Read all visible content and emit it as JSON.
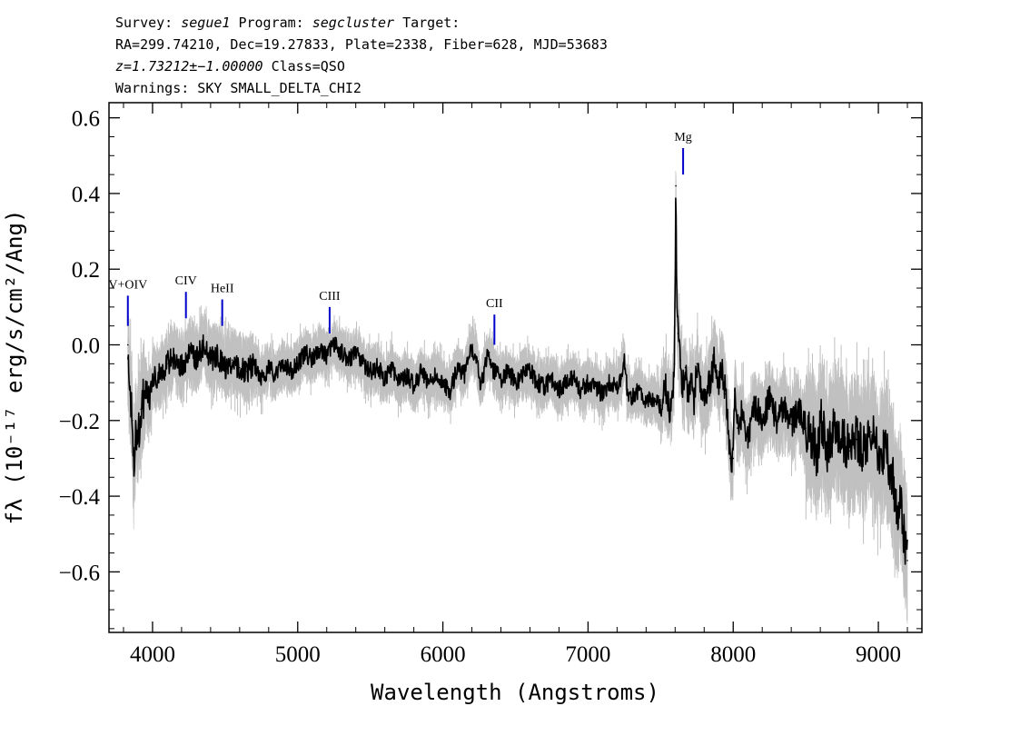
{
  "header": {
    "line1": {
      "survey_label": "Survey: ",
      "survey": "segue1",
      "program_label": " Program: ",
      "program": "segcluster",
      "target_label": " Target:"
    },
    "line2": "RA=299.74210, Dec=19.27833, Plate=2338, Fiber=628, MJD=53683",
    "line3": {
      "z": "z=1.73212±−1.00000",
      "class": " Class=QSO"
    },
    "line4": "Warnings: SKY SMALL_DELTA_CHI2"
  },
  "chart_data": {
    "type": "line",
    "xlabel": "Wavelength (Angstroms)",
    "ylabel": "fλ (10⁻¹⁷ erg/s/cm²/Ang)",
    "xlim": [
      3700,
      9300
    ],
    "ylim": [
      -0.76,
      0.64
    ],
    "x_ticks": [
      {
        "value": 4000,
        "label": "4000"
      },
      {
        "value": 5000,
        "label": "5000"
      },
      {
        "value": 6000,
        "label": "6000"
      },
      {
        "value": 7000,
        "label": "7000"
      },
      {
        "value": 8000,
        "label": "8000"
      },
      {
        "value": 9000,
        "label": "9000"
      }
    ],
    "y_ticks": [
      {
        "value": 0.6,
        "label": "0.6"
      },
      {
        "value": 0.4,
        "label": "0.4"
      },
      {
        "value": 0.2,
        "label": "0.2"
      },
      {
        "value": 0.0,
        "label": "0.0"
      },
      {
        "value": -0.2,
        "label": "−0.2"
      },
      {
        "value": -0.4,
        "label": "−0.4"
      },
      {
        "value": -0.6,
        "label": "−0.6"
      }
    ],
    "x_minor_step": 200,
    "y_minor_step": 0.05,
    "series": [
      {
        "style": "black",
        "points": [
          [
            3830,
            0.0
          ],
          [
            3840,
            -0.1
          ],
          [
            3860,
            -0.2
          ],
          [
            3870,
            -0.33
          ],
          [
            3885,
            -0.22
          ],
          [
            3900,
            -0.25
          ],
          [
            3920,
            -0.17
          ],
          [
            3950,
            -0.12
          ],
          [
            3980,
            -0.14
          ],
          [
            4000,
            -0.09
          ],
          [
            4050,
            -0.08
          ],
          [
            4100,
            -0.05
          ],
          [
            4150,
            -0.03
          ],
          [
            4200,
            -0.06
          ],
          [
            4250,
            -0.02
          ],
          [
            4300,
            -0.04
          ],
          [
            4350,
            0.0
          ],
          [
            4400,
            -0.04
          ],
          [
            4450,
            -0.03
          ],
          [
            4500,
            -0.06
          ],
          [
            4550,
            -0.04
          ],
          [
            4600,
            -0.06
          ],
          [
            4650,
            -0.07
          ],
          [
            4700,
            -0.05
          ],
          [
            4750,
            -0.09
          ],
          [
            4800,
            -0.06
          ],
          [
            4850,
            -0.08
          ],
          [
            4900,
            -0.05
          ],
          [
            4950,
            -0.07
          ],
          [
            5000,
            -0.05
          ],
          [
            5050,
            -0.02
          ],
          [
            5100,
            -0.04
          ],
          [
            5150,
            -0.01
          ],
          [
            5200,
            -0.03
          ],
          [
            5250,
            0.0
          ],
          [
            5300,
            -0.02
          ],
          [
            5350,
            -0.04
          ],
          [
            5400,
            -0.02
          ],
          [
            5450,
            -0.05
          ],
          [
            5500,
            -0.07
          ],
          [
            5550,
            -0.06
          ],
          [
            5600,
            -0.09
          ],
          [
            5650,
            -0.06
          ],
          [
            5700,
            -0.1
          ],
          [
            5750,
            -0.08
          ],
          [
            5800,
            -0.11
          ],
          [
            5850,
            -0.07
          ],
          [
            5900,
            -0.1
          ],
          [
            5950,
            -0.08
          ],
          [
            6000,
            -0.1
          ],
          [
            6050,
            -0.12
          ],
          [
            6100,
            -0.06
          ],
          [
            6150,
            -0.08
          ],
          [
            6200,
            -0.01
          ],
          [
            6230,
            -0.03
          ],
          [
            6260,
            -0.11
          ],
          [
            6300,
            -0.04
          ],
          [
            6320,
            -0.02
          ],
          [
            6350,
            -0.07
          ],
          [
            6400,
            -0.09
          ],
          [
            6450,
            -0.07
          ],
          [
            6500,
            -0.1
          ],
          [
            6550,
            -0.08
          ],
          [
            6600,
            -0.07
          ],
          [
            6650,
            -0.1
          ],
          [
            6700,
            -0.11
          ],
          [
            6750,
            -0.09
          ],
          [
            6800,
            -0.12
          ],
          [
            6850,
            -0.1
          ],
          [
            6900,
            -0.08
          ],
          [
            6950,
            -0.12
          ],
          [
            7000,
            -0.1
          ],
          [
            7050,
            -0.11
          ],
          [
            7100,
            -0.13
          ],
          [
            7150,
            -0.1
          ],
          [
            7200,
            -0.11
          ],
          [
            7230,
            -0.09
          ],
          [
            7250,
            -0.03
          ],
          [
            7270,
            -0.12
          ],
          [
            7300,
            -0.14
          ],
          [
            7350,
            -0.12
          ],
          [
            7400,
            -0.15
          ],
          [
            7450,
            -0.14
          ],
          [
            7500,
            -0.16
          ],
          [
            7530,
            -0.1
          ],
          [
            7560,
            -0.17
          ],
          [
            7580,
            -0.14
          ],
          [
            7595,
            -0.05
          ],
          [
            7605,
            0.42
          ],
          [
            7612,
            0.1
          ],
          [
            7620,
            0.03
          ],
          [
            7635,
            -0.04
          ],
          [
            7650,
            -0.11
          ],
          [
            7670,
            -0.06
          ],
          [
            7690,
            -0.14
          ],
          [
            7710,
            -0.1
          ],
          [
            7730,
            -0.15
          ],
          [
            7750,
            -0.05
          ],
          [
            7770,
            -0.11
          ],
          [
            7800,
            -0.15
          ],
          [
            7830,
            -0.11
          ],
          [
            7850,
            -0.08
          ],
          [
            7870,
            -0.04
          ],
          [
            7900,
            -0.1
          ],
          [
            7920,
            -0.06
          ],
          [
            7950,
            -0.13
          ],
          [
            7980,
            -0.3
          ],
          [
            8000,
            -0.3
          ],
          [
            8010,
            -0.12
          ],
          [
            8030,
            -0.22
          ],
          [
            8060,
            -0.18
          ],
          [
            8100,
            -0.25
          ],
          [
            8150,
            -0.16
          ],
          [
            8200,
            -0.2
          ],
          [
            8250,
            -0.14
          ],
          [
            8300,
            -0.2
          ],
          [
            8350,
            -0.16
          ],
          [
            8400,
            -0.21
          ],
          [
            8450,
            -0.17
          ],
          [
            8500,
            -0.22
          ],
          [
            8550,
            -0.25
          ],
          [
            8580,
            -0.3
          ],
          [
            8600,
            -0.2
          ],
          [
            8630,
            -0.23
          ],
          [
            8650,
            -0.28
          ],
          [
            8700,
            -0.22
          ],
          [
            8750,
            -0.24
          ],
          [
            8800,
            -0.28
          ],
          [
            8850,
            -0.25
          ],
          [
            8900,
            -0.28
          ],
          [
            8950,
            -0.23
          ],
          [
            9000,
            -0.3
          ],
          [
            9050,
            -0.27
          ],
          [
            9100,
            -0.35
          ],
          [
            9130,
            -0.44
          ],
          [
            9150,
            -0.38
          ],
          [
            9170,
            -0.5
          ],
          [
            9190,
            -0.53
          ],
          [
            9200,
            -0.57
          ]
        ]
      }
    ],
    "error_band_color": "#c0c0c0",
    "spectrum_color": "#000000",
    "line_marker_color": "#0000cc",
    "line_markers": [
      {
        "label": "V+OIV",
        "wavelength": 3830,
        "marker_top": 0.13,
        "marker_bottom": 0.05
      },
      {
        "label": "CIV",
        "wavelength": 4230,
        "marker_top": 0.14,
        "marker_bottom": 0.07
      },
      {
        "label": "HeII",
        "wavelength": 4480,
        "marker_top": 0.12,
        "marker_bottom": 0.05
      },
      {
        "label": "CIII",
        "wavelength": 5220,
        "marker_top": 0.1,
        "marker_bottom": 0.03
      },
      {
        "label": "CII",
        "wavelength": 6355,
        "marker_top": 0.08,
        "marker_bottom": 0.0
      },
      {
        "label": "Mg",
        "wavelength": 7655,
        "marker_top": 0.52,
        "marker_bottom": 0.45
      }
    ]
  }
}
